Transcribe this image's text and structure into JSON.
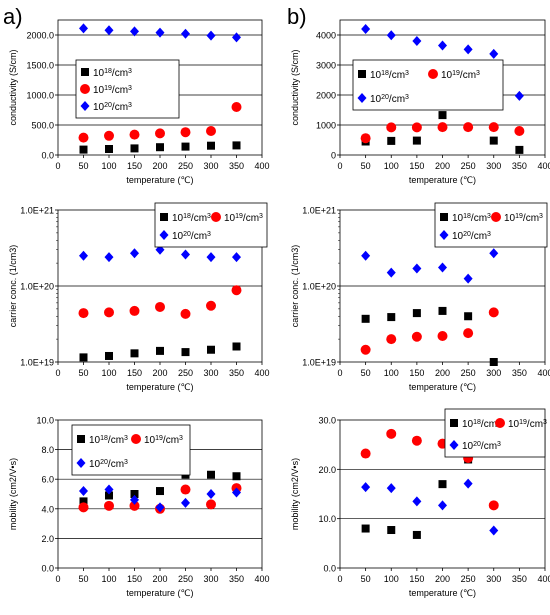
{
  "panel_labels": [
    "a)",
    "b)"
  ],
  "series_styles": [
    {
      "name": "10^18/cm^3",
      "color": "#000000",
      "marker": "square"
    },
    {
      "name": "10^19/cm^3",
      "color": "#ff0000",
      "marker": "circle"
    },
    {
      "name": "10^20/cm^3",
      "color": "#0000ff",
      "marker": "diamond"
    }
  ],
  "chart_data": [
    {
      "id": "a-conductivity",
      "type": "scatter",
      "xlabel": "temperature (℃)",
      "ylabel": "conductivity (S/cm)",
      "xlim": [
        0,
        400
      ],
      "xticks": [
        0,
        50,
        100,
        150,
        200,
        250,
        300,
        350,
        400
      ],
      "ylim": [
        0,
        2250
      ],
      "yticks": [
        0,
        500,
        1000,
        1500,
        2000
      ],
      "yticklabels": [
        "0.0",
        "500.0",
        "1000.0",
        "1500.0",
        "2000.0"
      ],
      "grid": true,
      "legend": "upper-left",
      "series": [
        {
          "name": "10^18/cm^3",
          "x": [
            50,
            100,
            150,
            200,
            250,
            300,
            350
          ],
          "y": [
            90,
            100,
            110,
            130,
            140,
            155,
            160
          ]
        },
        {
          "name": "10^19/cm^3",
          "x": [
            50,
            100,
            150,
            200,
            250,
            300,
            350
          ],
          "y": [
            290,
            320,
            340,
            360,
            380,
            400,
            800
          ]
        },
        {
          "name": "10^20/cm^3",
          "x": [
            50,
            100,
            150,
            200,
            250,
            300,
            350
          ],
          "y": [
            2110,
            2080,
            2060,
            2040,
            2020,
            1990,
            1960
          ]
        }
      ]
    },
    {
      "id": "b-conductivity",
      "type": "scatter",
      "xlabel": "temperature (℃)",
      "ylabel": "conductivity (S/cm)",
      "xlim": [
        0,
        400
      ],
      "xticks": [
        0,
        50,
        100,
        150,
        200,
        250,
        300,
        350,
        400
      ],
      "ylim": [
        0,
        4500
      ],
      "yticks": [
        0,
        1000,
        2000,
        3000,
        4000
      ],
      "yticklabels": [
        "0",
        "1000",
        "2000",
        "3000",
        "4000"
      ],
      "grid": true,
      "legend": "upper-left",
      "series": [
        {
          "name": "10^18/cm^3",
          "x": [
            50,
            100,
            150,
            200,
            300,
            350
          ],
          "y": [
            450,
            470,
            480,
            1330,
            480,
            170
          ]
        },
        {
          "name": "10^19/cm^3",
          "x": [
            50,
            100,
            150,
            200,
            250,
            300,
            350
          ],
          "y": [
            560,
            920,
            920,
            930,
            930,
            930,
            800
          ]
        },
        {
          "name": "10^20/cm^3",
          "x": [
            50,
            100,
            150,
            200,
            250,
            300,
            350
          ],
          "y": [
            4200,
            3990,
            3800,
            3650,
            3520,
            3370,
            1970
          ]
        }
      ]
    },
    {
      "id": "a-carrier",
      "type": "scatter",
      "xlabel": "temperature (℃)",
      "ylabel": "carrier conc. (1/cm3)",
      "ylog": true,
      "xlim": [
        0,
        400
      ],
      "xticks": [
        0,
        50,
        100,
        150,
        200,
        250,
        300,
        350,
        400
      ],
      "ylim": [
        1e+19,
        1e+21
      ],
      "yticks": [
        1e+19,
        1e+20,
        1e+21
      ],
      "yticklabels": [
        "1.0E+19",
        "1.0E+20",
        "1.0E+21"
      ],
      "grid": true,
      "legend": "top-right",
      "series": [
        {
          "name": "10^18/cm^3",
          "x": [
            50,
            100,
            150,
            200,
            250,
            300,
            350
          ],
          "y": [
            1.15e+19,
            1.2e+19,
            1.3e+19,
            1.4e+19,
            1.35e+19,
            1.45e+19,
            1.6e+19
          ]
        },
        {
          "name": "10^19/cm^3",
          "x": [
            50,
            100,
            150,
            200,
            250,
            300,
            350
          ],
          "y": [
            4.4e+19,
            4.5e+19,
            4.7e+19,
            5.3e+19,
            4.3e+19,
            5.5e+19,
            8.8e+19
          ]
        },
        {
          "name": "10^20/cm^3",
          "x": [
            50,
            100,
            150,
            200,
            250,
            300,
            350
          ],
          "y": [
            2.5e+20,
            2.4e+20,
            2.7e+20,
            3e+20,
            2.6e+20,
            2.4e+20,
            2.4e+20
          ]
        }
      ]
    },
    {
      "id": "b-carrier",
      "type": "scatter",
      "xlabel": "temperature (℃)",
      "ylabel": "carrier conc. (1/cm3)",
      "ylog": true,
      "xlim": [
        0,
        400
      ],
      "xticks": [
        0,
        50,
        100,
        150,
        200,
        250,
        300,
        350,
        400
      ],
      "ylim": [
        1e+19,
        1e+21
      ],
      "yticks": [
        1e+19,
        1e+20,
        1e+21
      ],
      "yticklabels": [
        "1.0E+19",
        "1.0E+20",
        "1.0E+21"
      ],
      "grid": true,
      "legend": "top-right",
      "series": [
        {
          "name": "10^18/cm^3",
          "x": [
            50,
            100,
            150,
            200,
            250,
            300
          ],
          "y": [
            3.7e+19,
            3.9e+19,
            4.4e+19,
            4.7e+19,
            4e+19,
            1e+19
          ]
        },
        {
          "name": "10^19/cm^3",
          "x": [
            50,
            100,
            150,
            200,
            250,
            300
          ],
          "y": [
            1.45e+19,
            2e+19,
            2.15e+19,
            2.2e+19,
            2.4e+19,
            4.5e+19
          ]
        },
        {
          "name": "10^20/cm^3",
          "x": [
            50,
            100,
            150,
            200,
            250,
            300
          ],
          "y": [
            2.5e+20,
            1.5e+20,
            1.7e+20,
            1.75e+20,
            1.25e+20,
            2.7e+20
          ]
        }
      ]
    },
    {
      "id": "a-mobility",
      "type": "scatter",
      "xlabel": "temperature (℃)",
      "ylabel": "mobility (cm2/V•s)",
      "xlim": [
        0,
        400
      ],
      "xticks": [
        0,
        50,
        100,
        150,
        200,
        250,
        300,
        350,
        400
      ],
      "ylim": [
        0,
        10
      ],
      "yticks": [
        0,
        2,
        4,
        6,
        8,
        10
      ],
      "yticklabels": [
        "0.0",
        "2.0",
        "4.0",
        "6.0",
        "8.0",
        "10.0"
      ],
      "grid": true,
      "legend": "upper-left",
      "series": [
        {
          "name": "10^18/cm^3",
          "x": [
            50,
            100,
            150,
            200,
            250,
            300,
            350
          ],
          "y": [
            4.5,
            4.9,
            5.0,
            5.2,
            6.3,
            6.3,
            6.2
          ]
        },
        {
          "name": "10^19/cm^3",
          "x": [
            50,
            100,
            150,
            200,
            250,
            300,
            350
          ],
          "y": [
            4.1,
            4.2,
            4.2,
            4.0,
            5.3,
            4.3,
            5.4
          ]
        },
        {
          "name": "10^20/cm^3",
          "x": [
            50,
            100,
            150,
            200,
            250,
            300,
            350
          ],
          "y": [
            5.2,
            5.3,
            4.6,
            4.1,
            4.4,
            5.0,
            5.1
          ]
        }
      ]
    },
    {
      "id": "b-mobility",
      "type": "scatter",
      "xlabel": "temperature (℃)",
      "ylabel": "mobility (cm2/V•s)",
      "xlim": [
        0,
        400
      ],
      "xticks": [
        0,
        50,
        100,
        150,
        200,
        250,
        300,
        350,
        400
      ],
      "ylim": [
        0,
        30
      ],
      "yticks": [
        0,
        10,
        20,
        30
      ],
      "yticklabels": [
        "0.0",
        "10.0",
        "20.0",
        "30.0"
      ],
      "grid": true,
      "legend": "top-right",
      "series": [
        {
          "name": "10^18/cm^3",
          "x": [
            50,
            100,
            150,
            200,
            250
          ],
          "y": [
            8.0,
            7.7,
            6.7,
            17.0,
            22.0
          ]
        },
        {
          "name": "10^19/cm^3",
          "x": [
            50,
            100,
            150,
            200,
            250,
            300
          ],
          "y": [
            23.2,
            27.2,
            25.8,
            25.2,
            22.3,
            12.7
          ]
        },
        {
          "name": "10^20/cm^3",
          "x": [
            50,
            100,
            150,
            200,
            250,
            300
          ],
          "y": [
            16.4,
            16.2,
            13.5,
            12.7,
            17.1,
            7.6
          ]
        }
      ]
    }
  ]
}
